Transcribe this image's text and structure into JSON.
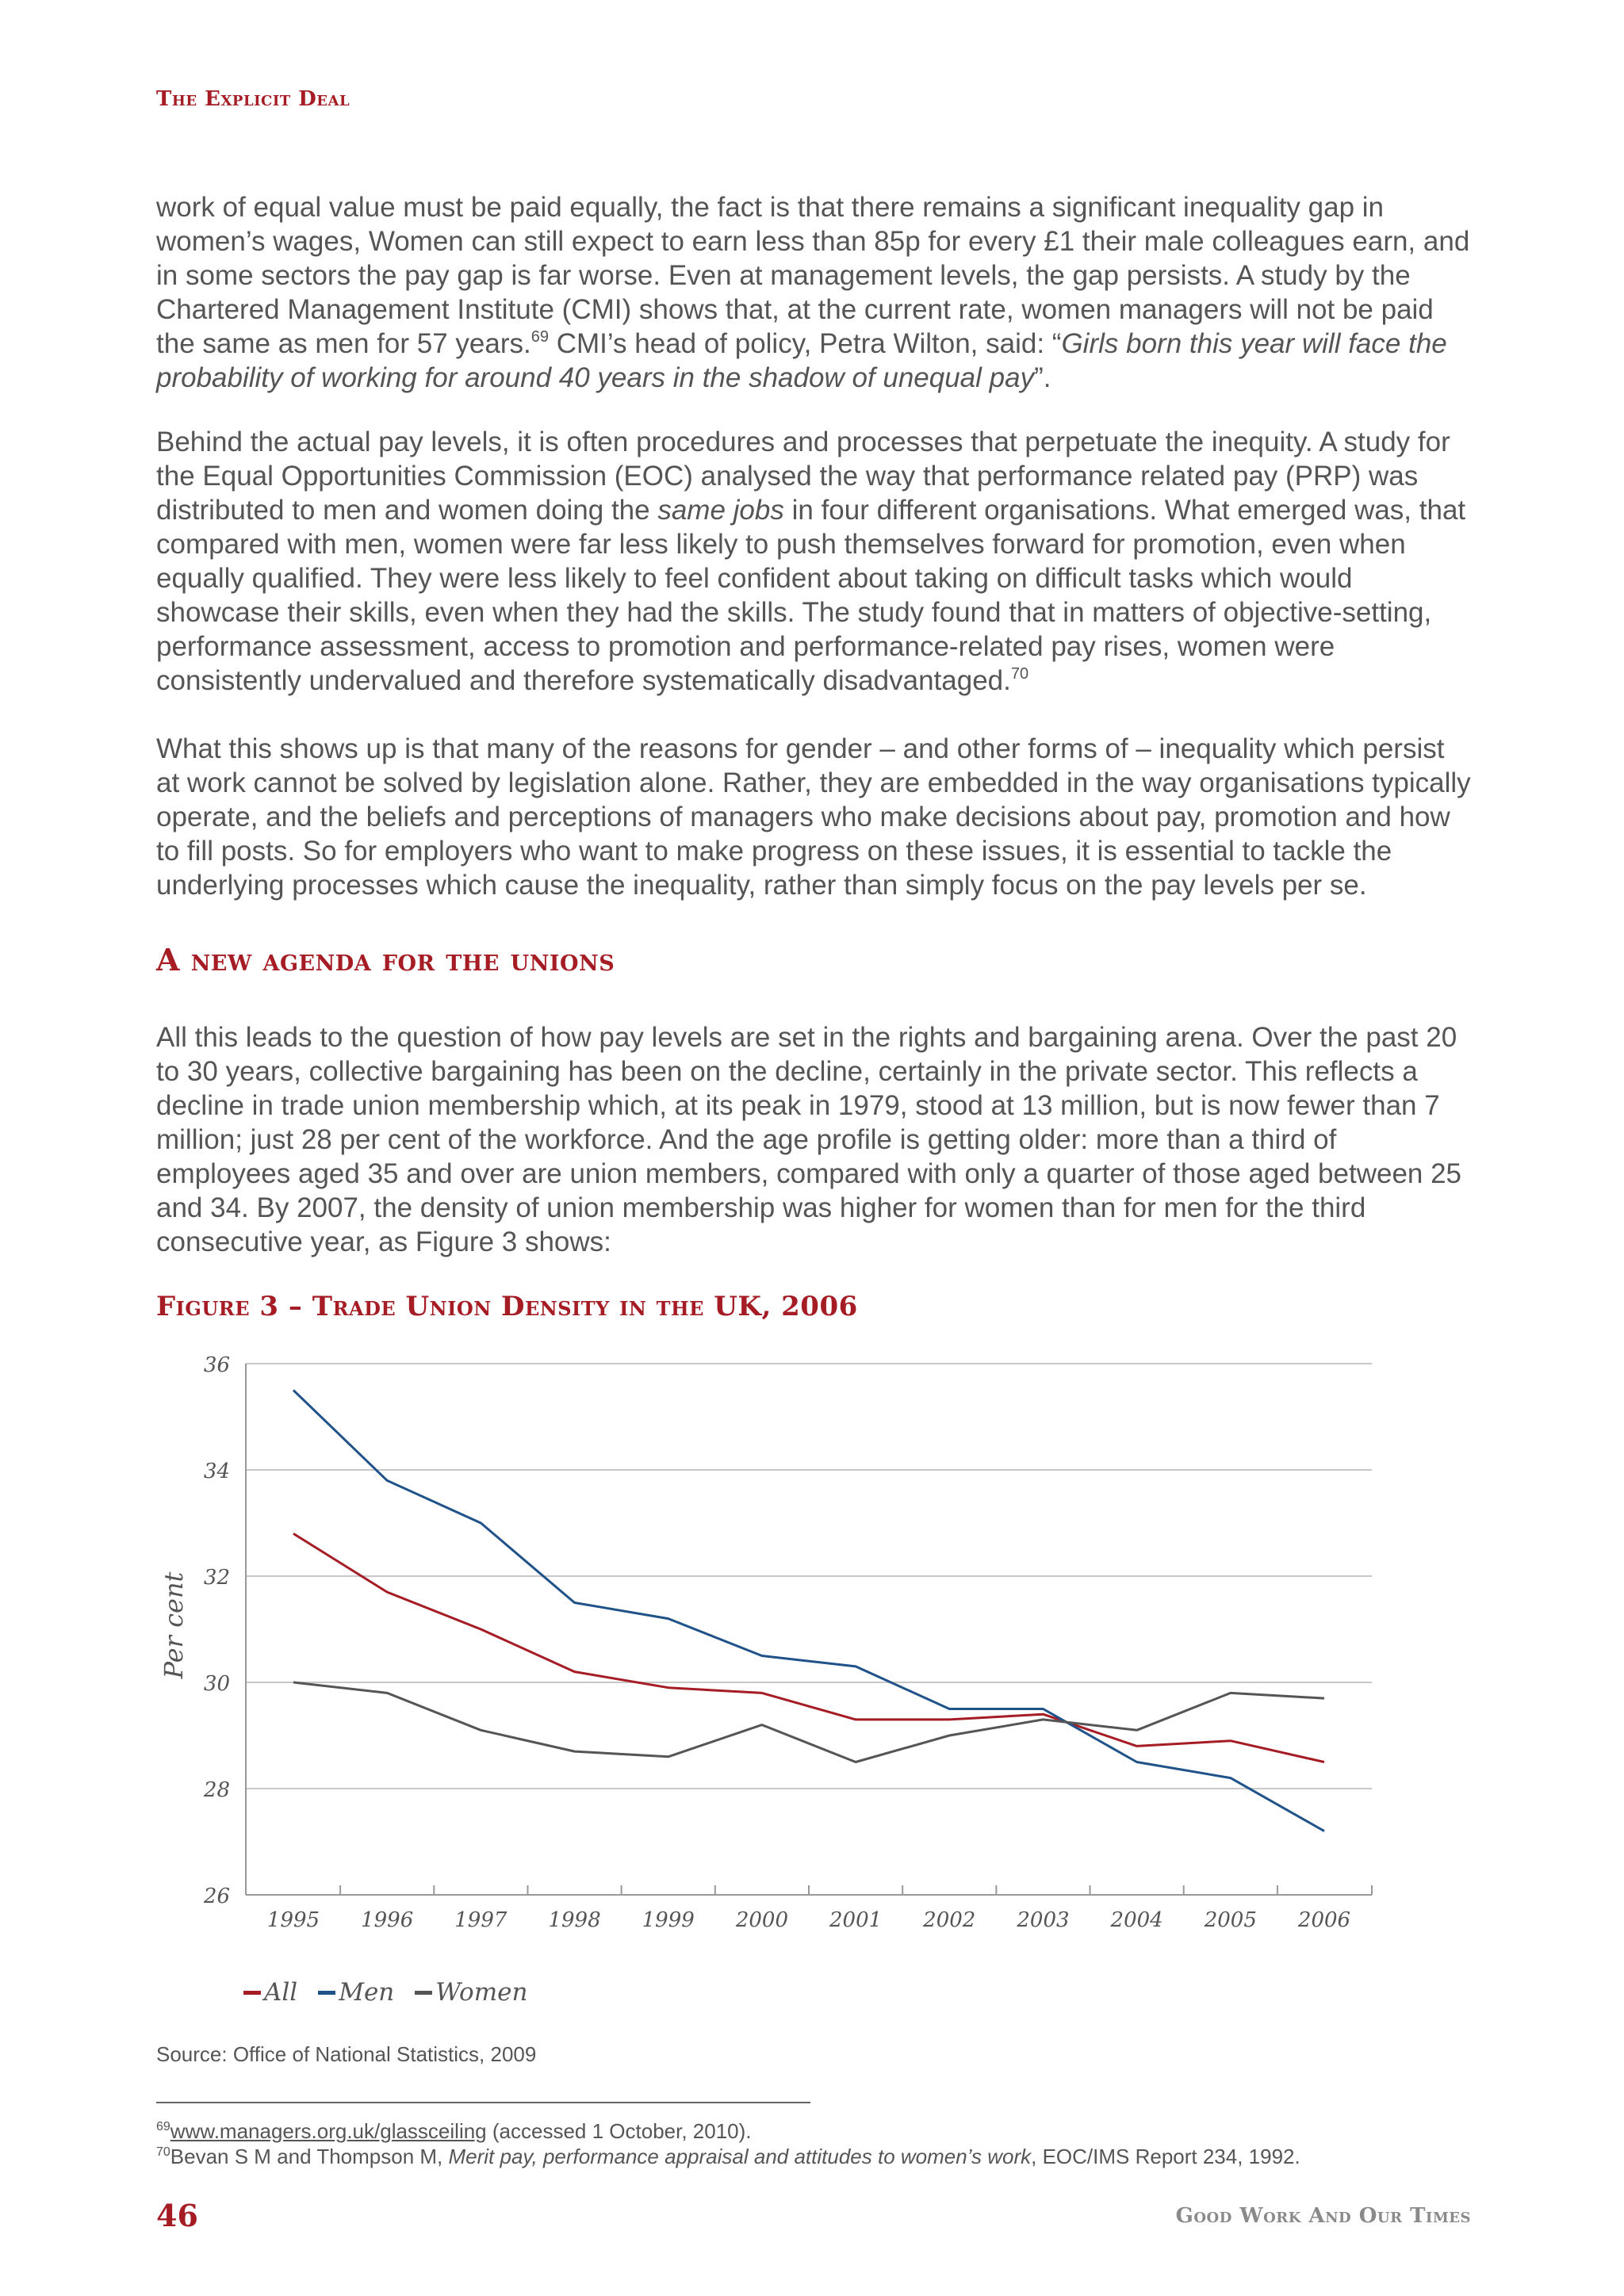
{
  "header": {
    "running_title": "The Explicit Deal"
  },
  "paragraphs": {
    "p1": {
      "text_a": "work of equal value must be paid equally, the fact is that there remains a significant inequality gap in women’s wages, Women can still expect to earn less than 85p for every £1 their male colleagues earn, and in some sectors the pay gap is far worse. Even at management levels, the gap persists. A study by the Chartered Management Institute (CMI) shows that, at the current rate, women managers will not be paid the same as men for 57 years.",
      "sup": "69",
      "text_b": " CMI’s head of policy, Petra Wilton, said: “",
      "quote": "Girls born this year will face the probability of working for around 40 years in the shadow of unequal pay",
      "text_c": "”."
    },
    "p2": {
      "text_a": "Behind the actual pay levels, it is often procedures and processes that perpetuate the inequity. A study for the Equal Opportunities Commission (EOC) analysed the way that performance related pay (PRP) was distributed to men and women doing the ",
      "emphasis": "same jobs",
      "text_b": " in four different organisations. What emerged was, that compared with men, women were far less likely to push themselves forward for promotion, even when equally qualified. They were less likely to feel confident about taking on difficult tasks which would showcase their skills, even when they had the skills. The study found that in matters of objective-setting, performance assessment, access to promotion and performance-related pay rises, women were consistently undervalued and therefore systematically disadvantaged.",
      "sup": "70"
    },
    "p3": "What this shows up is that many of the reasons for gender – and other forms of – inequality which persist at work cannot be solved by legislation alone. Rather, they are embedded in the way organisations typically operate, and the beliefs and perceptions of managers who make decisions about pay, promotion and how to fill posts. So for employers who want to make progress on these issues, it is essential to tackle the underlying processes which cause the inequality, rather than simply focus on the pay levels per se.",
    "p4": "All this leads to the question of how pay levels are set in the rights and bargaining arena. Over the past 20 to 30 years, collective bargaining has been on the decline, certainly in the private sector. This reflects a decline in trade union membership which, at its peak in 1979, stood at 13 million, but is now fewer than 7 million; just 28 per cent of the workforce. And the age profile is getting older: more than a third of employees aged 35 and over are union members, compared with only a quarter of those aged between 25 and 34. By 2007, the density of union membership was higher for women than for men for the third consecutive year, as Figure 3 shows:"
  },
  "section_heading": "A new agenda for the unions",
  "figure": {
    "title": "Figure 3 – Trade Union Density in the UK, 2006",
    "source": "Source: Office of National Statistics, 2009"
  },
  "chart_data": {
    "type": "line",
    "title": "Figure 3 – Trade Union Density in the UK, 2006",
    "xlabel": "",
    "ylabel": "Per cent",
    "x": [
      "1995",
      "1996",
      "1997",
      "1998",
      "1999",
      "2000",
      "2001",
      "2002",
      "2003",
      "2004",
      "2005",
      "2006"
    ],
    "ylim": [
      26,
      36
    ],
    "yticks": [
      "26",
      "28",
      "30",
      "32",
      "34",
      "36"
    ],
    "grid": true,
    "legend_position": "bottom-left",
    "series": [
      {
        "name": "All",
        "color": "#a51c24",
        "values": [
          32.8,
          31.7,
          31.0,
          30.2,
          29.9,
          29.8,
          29.3,
          29.3,
          29.4,
          28.8,
          28.9,
          28.5
        ]
      },
      {
        "name": "Men",
        "color": "#1f5289",
        "values": [
          35.5,
          33.8,
          33.0,
          31.5,
          31.2,
          30.5,
          30.3,
          29.5,
          29.5,
          28.5,
          28.2,
          27.2
        ]
      },
      {
        "name": "Women",
        "color": "#555555",
        "values": [
          30.0,
          29.8,
          29.1,
          28.7,
          28.6,
          29.2,
          28.5,
          29.0,
          29.3,
          29.1,
          29.8,
          29.7
        ]
      }
    ]
  },
  "footnotes": [
    {
      "num": "69",
      "link": "www.managers.org.uk/glassceiling",
      "text": " (accessed 1 October, 2010)."
    },
    {
      "num": "70",
      "text_a": "Bevan S M and Thompson M, ",
      "title": "Merit pay, performance appraisal and attitudes to women’s work",
      "text_b": ", EOC/IMS Report 234, 1992."
    }
  ],
  "footer": {
    "page_number": "46",
    "running_title": "Good Work And Our Times"
  }
}
